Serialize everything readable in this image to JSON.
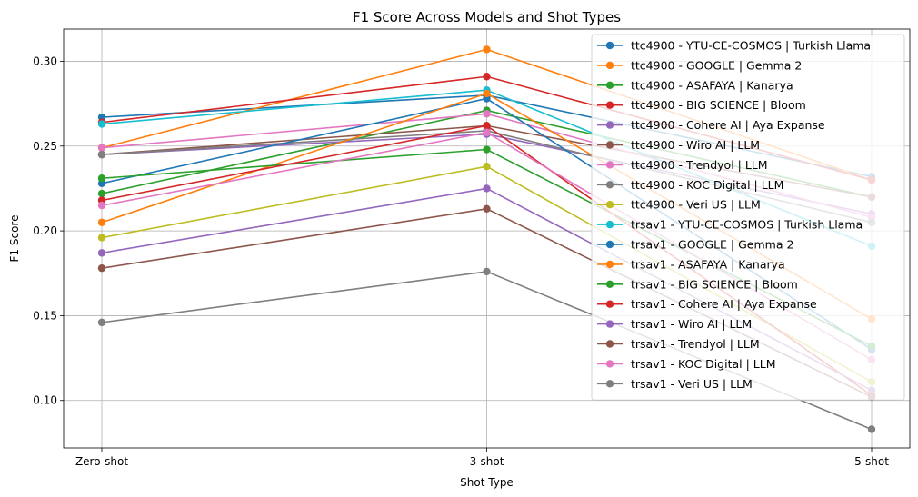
{
  "chart_data": {
    "type": "line",
    "title": "F1 Score Across Models and Shot Types",
    "xlabel": "Shot Type",
    "ylabel": "F1 Score",
    "categories": [
      "Zero-shot",
      "3-shot",
      "5-shot"
    ],
    "ylim": [
      0.072,
      0.319
    ],
    "yticks": [
      0.1,
      0.15,
      0.2,
      0.25,
      0.3
    ],
    "ytick_labels": [
      "0.10",
      "0.15",
      "0.20",
      "0.25",
      "0.30"
    ],
    "grid": true,
    "legend_position": "top-right",
    "series": [
      {
        "name": "ttc4900 - YTU-CE-COSMOS | Turkish Llama",
        "color": "#1f77b4",
        "values": [
          0.267,
          0.28,
          0.232
        ]
      },
      {
        "name": "ttc4900 - GOOGLE | Gemma 2",
        "color": "#ff7f0e",
        "values": [
          0.249,
          0.307,
          0.23
        ]
      },
      {
        "name": "ttc4900 - ASAFAYA | Kanarya",
        "color": "#2ca02c",
        "values": [
          0.222,
          0.271,
          0.22
        ]
      },
      {
        "name": "ttc4900 - BIG SCIENCE | Bloom",
        "color": "#d62728",
        "values": [
          0.264,
          0.291,
          0.23
        ]
      },
      {
        "name": "ttc4900 - Cohere AI | Aya Expanse",
        "color": "#9467bd",
        "values": [
          0.245,
          0.257,
          0.21
        ]
      },
      {
        "name": "ttc4900 - Wiro AI | LLM",
        "color": "#8c564b",
        "values": [
          0.245,
          0.262,
          0.22
        ]
      },
      {
        "name": "ttc4900 - Trendyol | LLM",
        "color": "#e377c2",
        "values": [
          0.249,
          0.269,
          0.208
        ]
      },
      {
        "name": "ttc4900 - KOC Digital | LLM",
        "color": "#7f7f7f",
        "values": [
          0.245,
          0.259,
          0.205
        ]
      },
      {
        "name": "ttc4900 - Veri US | LLM",
        "color": "#bcbd22",
        "values": [
          0.196,
          0.238,
          0.111
        ]
      },
      {
        "name": "trsav1 - YTU-CE-COSMOS | Turkish Llama",
        "color": "#17becf",
        "values": [
          0.263,
          0.283,
          0.191
        ]
      },
      {
        "name": "trsav1 - GOOGLE | Gemma 2",
        "color": "#1f77b4",
        "values": [
          0.228,
          0.278,
          0.13
        ]
      },
      {
        "name": "trsav1 - ASAFAYA | Kanarya",
        "color": "#ff7f0e",
        "values": [
          0.205,
          0.281,
          0.148
        ]
      },
      {
        "name": "trsav1 - BIG SCIENCE | Bloom",
        "color": "#2ca02c",
        "values": [
          0.231,
          0.248,
          0.132
        ]
      },
      {
        "name": "trsav1 - Cohere AI | Aya Expanse",
        "color": "#d62728",
        "values": [
          0.218,
          0.262,
          0.103
        ]
      },
      {
        "name": "trsav1 - Wiro AI | LLM",
        "color": "#9467bd",
        "values": [
          0.187,
          0.225,
          0.106
        ]
      },
      {
        "name": "trsav1 - Trendyol | LLM",
        "color": "#8c564b",
        "values": [
          0.178,
          0.213,
          0.102
        ]
      },
      {
        "name": "trsav1 - KOC Digital | LLM",
        "color": "#e377c2",
        "values": [
          0.215,
          0.258,
          0.124
        ]
      },
      {
        "name": "trsav1 - Veri US | LLM",
        "color": "#7f7f7f",
        "values": [
          0.146,
          0.176,
          0.083
        ]
      }
    ]
  }
}
